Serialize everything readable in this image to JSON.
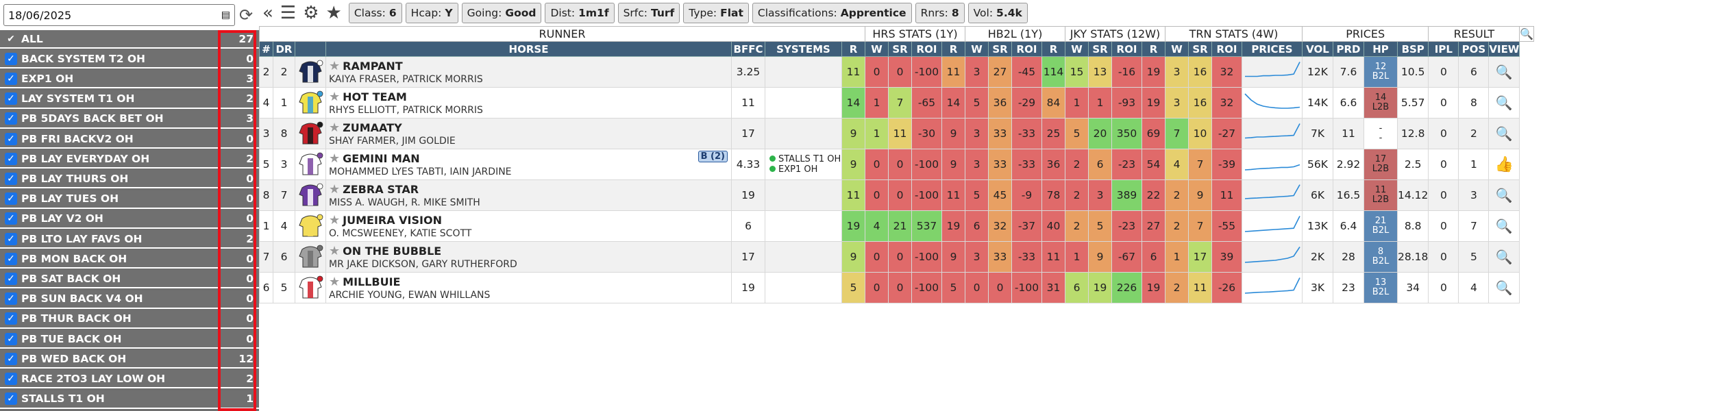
{
  "date": "18/06/2025",
  "sidebar": [
    {
      "label": "ALL",
      "count": "27",
      "all": true
    },
    {
      "label": "BACK SYSTEM T2 OH",
      "count": "0"
    },
    {
      "label": "EXP1 OH",
      "count": "3"
    },
    {
      "label": "LAY SYSTEM T1 OH",
      "count": "2"
    },
    {
      "label": "PB 5DAYS BACK BET OH",
      "count": "3"
    },
    {
      "label": "PB FRI BACKV2 OH",
      "count": "0"
    },
    {
      "label": "PB LAY EVERYDAY OH",
      "count": "2"
    },
    {
      "label": "PB LAY THURS OH",
      "count": "0"
    },
    {
      "label": "PB LAY TUES OH",
      "count": "0"
    },
    {
      "label": "PB LAY V2 OH",
      "count": "0"
    },
    {
      "label": "PB LTO LAY FAVS OH",
      "count": "2"
    },
    {
      "label": "PB MON BACK OH",
      "count": "0"
    },
    {
      "label": "PB SAT BACK OH",
      "count": "0"
    },
    {
      "label": "PB SUN BACK V4 OH",
      "count": "0"
    },
    {
      "label": "PB THUR BACK OH",
      "count": "0"
    },
    {
      "label": "PB TUE BACK OH",
      "count": "0"
    },
    {
      "label": "PB WED BACK OH",
      "count": "12"
    },
    {
      "label": "RACE 2TO3 LAY LOW OH",
      "count": "2"
    },
    {
      "label": "STALLS T1 OH",
      "count": "1"
    }
  ],
  "chips": [
    {
      "k": "Class:",
      "v": "6"
    },
    {
      "k": "Hcap:",
      "v": "Y"
    },
    {
      "k": "Going:",
      "v": "Good"
    },
    {
      "k": "Dist:",
      "v": "1m1f"
    },
    {
      "k": "Srfc:",
      "v": "Turf"
    },
    {
      "k": "Type:",
      "v": "Flat"
    },
    {
      "k": "Classifications:",
      "v": "Apprentice"
    },
    {
      "k": "Rnrs:",
      "v": "8"
    },
    {
      "k": "Vol:",
      "v": "5.4k"
    }
  ],
  "groups": [
    {
      "label": "RUNNER",
      "span": 7
    },
    {
      "label": "HRS STATS (1Y)",
      "span": 4
    },
    {
      "label": "HB2L (1Y)",
      "span": 4
    },
    {
      "label": "JKY STATS (12W)",
      "span": 4
    },
    {
      "label": "TRN STATS (4W)",
      "span": 4
    },
    {
      "label": "PRICES",
      "span": 4
    },
    {
      "label": "RESULT",
      "span": 3
    },
    {
      "label": "",
      "span": 1,
      "icon": true
    }
  ],
  "headers": [
    "#",
    "DR",
    "",
    "HORSE",
    "BFFC",
    "SYSTEMS",
    "R",
    "W",
    "SR",
    "ROI",
    "R",
    "W",
    "SR",
    "ROI",
    "R",
    "W",
    "SR",
    "ROI",
    "R",
    "W",
    "SR",
    "ROI",
    "PRICES",
    "VOL",
    "PRD",
    "HP",
    "BSP",
    "IPL",
    "POS",
    "VIEW"
  ],
  "colors": {
    "green": "#7fd36b",
    "lime": "#b9dc6e",
    "yellow": "#e6cf6e",
    "orange": "#e8a063",
    "red": "#e06a6a",
    "blue": "#5a87b5"
  },
  "rows": [
    {
      "n": "2",
      "dr": "2",
      "silk": [
        "#1b2a55",
        "#ffffff"
      ],
      "name": "RAMPANT",
      "sub": "KAIYA FRASER, PATRICK MORRIS",
      "bffc": "3.25",
      "sys": [],
      "tag": "",
      "stats": [
        [
          "11",
          "lime"
        ],
        [
          "0",
          "red"
        ],
        [
          "0",
          "red"
        ],
        [
          "-100",
          "red"
        ],
        [
          "11",
          "orange"
        ],
        [
          "3",
          "red"
        ],
        [
          "27",
          "orange"
        ],
        [
          "-45",
          "red"
        ],
        [
          "114",
          "green"
        ],
        [
          "15",
          "lime"
        ],
        [
          "13",
          "yellow"
        ],
        [
          "-16",
          "red"
        ],
        [
          "19",
          "red"
        ],
        [
          "3",
          "yellow"
        ],
        [
          "16",
          "yellow"
        ],
        [
          "32",
          "red"
        ]
      ],
      "spark": [
        0.25,
        0.25,
        0.25,
        0.28,
        0.28,
        0.3,
        0.3,
        0.32,
        0.36,
        0.95
      ],
      "vol": "12K",
      "prd": "7.6",
      "hp": "12\nB2L",
      "hpc": "blue",
      "bsp": "10.5",
      "ipl": "0",
      "pos": "6",
      "view": "search"
    },
    {
      "n": "4",
      "dr": "1",
      "silk": [
        "#f0e24a",
        "#3aa0d8"
      ],
      "name": "HOT TEAM",
      "sub": "RHYS ELLIOTT, PATRICK MORRIS",
      "bffc": "11",
      "sys": [],
      "tag": "",
      "stats": [
        [
          "14",
          "green"
        ],
        [
          "1",
          "red"
        ],
        [
          "7",
          "lime"
        ],
        [
          "-65",
          "red"
        ],
        [
          "14",
          "red"
        ],
        [
          "5",
          "red"
        ],
        [
          "36",
          "orange"
        ],
        [
          "-29",
          "red"
        ],
        [
          "84",
          "orange"
        ],
        [
          "1",
          "red"
        ],
        [
          "1",
          "red"
        ],
        [
          "-93",
          "red"
        ],
        [
          "19",
          "red"
        ],
        [
          "3",
          "yellow"
        ],
        [
          "16",
          "yellow"
        ],
        [
          "32",
          "red"
        ]
      ],
      "spark": [
        0.9,
        0.6,
        0.4,
        0.3,
        0.25,
        0.22,
        0.2,
        0.2,
        0.22,
        0.25
      ],
      "vol": "14K",
      "prd": "6.6",
      "hp": "14\nL2B",
      "hpc": "red",
      "bsp": "5.57",
      "ipl": "0",
      "pos": "8",
      "view": "search"
    },
    {
      "n": "3",
      "dr": "8",
      "silk": [
        "#c8202a",
        "#1b1b1b"
      ],
      "name": "ZUMAATY",
      "sub": "SHAY FARMER, JIM GOLDIE",
      "bffc": "17",
      "sys": [],
      "tag": "",
      "stats": [
        [
          "9",
          "lime"
        ],
        [
          "1",
          "lime"
        ],
        [
          "11",
          "yellow"
        ],
        [
          "-30",
          "red"
        ],
        [
          "9",
          "red"
        ],
        [
          "3",
          "red"
        ],
        [
          "33",
          "orange"
        ],
        [
          "-33",
          "red"
        ],
        [
          "25",
          "red"
        ],
        [
          "5",
          "orange"
        ],
        [
          "20",
          "green"
        ],
        [
          "350",
          "green"
        ],
        [
          "69",
          "red"
        ],
        [
          "7",
          "green"
        ],
        [
          "10",
          "yellow"
        ],
        [
          "-27",
          "red"
        ]
      ],
      "spark": [
        0.25,
        0.27,
        0.3,
        0.3,
        0.32,
        0.33,
        0.35,
        0.36,
        0.38,
        0.95
      ],
      "vol": "7K",
      "prd": "11",
      "hp": "-\n-",
      "hpc": "blank",
      "bsp": "12.8",
      "ipl": "0",
      "pos": "2",
      "view": "search"
    },
    {
      "n": "5",
      "dr": "3",
      "silk": [
        "#ffffff",
        "#7a45a0"
      ],
      "name": "GEMINI MAN",
      "sub": "MOHAMMED LYES TABTI, IAIN JARDINE",
      "bffc": "4.33",
      "sys": [
        "STALLS T1 OH",
        "EXP1 OH"
      ],
      "tag": "B (2)",
      "stats": [
        [
          "9",
          "lime"
        ],
        [
          "0",
          "red"
        ],
        [
          "0",
          "red"
        ],
        [
          "-100",
          "red"
        ],
        [
          "9",
          "red"
        ],
        [
          "3",
          "red"
        ],
        [
          "33",
          "orange"
        ],
        [
          "-33",
          "red"
        ],
        [
          "36",
          "red"
        ],
        [
          "2",
          "red"
        ],
        [
          "6",
          "orange"
        ],
        [
          "-23",
          "red"
        ],
        [
          "54",
          "red"
        ],
        [
          "4",
          "yellow"
        ],
        [
          "7",
          "orange"
        ],
        [
          "-39",
          "red"
        ]
      ],
      "spark": [
        0.2,
        0.22,
        0.25,
        0.27,
        0.28,
        0.3,
        0.32,
        0.32,
        0.35,
        0.45
      ],
      "vol": "56K",
      "prd": "2.92",
      "hp": "17\nL2B",
      "hpc": "red",
      "bsp": "2.5",
      "ipl": "0",
      "pos": "1",
      "view": "thumb"
    },
    {
      "n": "8",
      "dr": "7",
      "silk": [
        "#6a3aa0",
        "#ffffff"
      ],
      "name": "ZEBRA STAR",
      "sub": "MISS A. WAUGH, R. MIKE SMITH",
      "bffc": "19",
      "sys": [],
      "tag": "",
      "stats": [
        [
          "11",
          "lime"
        ],
        [
          "0",
          "red"
        ],
        [
          "0",
          "red"
        ],
        [
          "-100",
          "red"
        ],
        [
          "11",
          "red"
        ],
        [
          "5",
          "red"
        ],
        [
          "45",
          "orange"
        ],
        [
          "-9",
          "red"
        ],
        [
          "78",
          "red"
        ],
        [
          "2",
          "red"
        ],
        [
          "3",
          "red"
        ],
        [
          "389",
          "green"
        ],
        [
          "22",
          "red"
        ],
        [
          "2",
          "orange"
        ],
        [
          "9",
          "orange"
        ],
        [
          "11",
          "red"
        ]
      ],
      "spark": [
        0.3,
        0.32,
        0.33,
        0.35,
        0.36,
        0.38,
        0.4,
        0.42,
        0.45,
        0.98
      ],
      "vol": "6K",
      "prd": "16.5",
      "hp": "11\nL2B",
      "hpc": "red",
      "bsp": "14.12",
      "ipl": "0",
      "pos": "3",
      "view": "search"
    },
    {
      "n": "1",
      "dr": "4",
      "silk": [
        "#f3dd5a",
        "#f3dd5a"
      ],
      "name": "JUMEIRA VISION",
      "sub": "O. MCSWEENEY, KATIE SCOTT",
      "bffc": "6",
      "sys": [],
      "tag": "",
      "stats": [
        [
          "19",
          "green"
        ],
        [
          "4",
          "green"
        ],
        [
          "21",
          "green"
        ],
        [
          "537",
          "green"
        ],
        [
          "19",
          "red"
        ],
        [
          "6",
          "red"
        ],
        [
          "32",
          "orange"
        ],
        [
          "-37",
          "red"
        ],
        [
          "40",
          "red"
        ],
        [
          "2",
          "orange"
        ],
        [
          "5",
          "orange"
        ],
        [
          "-23",
          "red"
        ],
        [
          "27",
          "red"
        ],
        [
          "2",
          "orange"
        ],
        [
          "7",
          "orange"
        ],
        [
          "-55",
          "red"
        ]
      ],
      "spark": [
        0.2,
        0.22,
        0.24,
        0.26,
        0.28,
        0.3,
        0.32,
        0.34,
        0.36,
        0.95
      ],
      "vol": "13K",
      "prd": "6.4",
      "hp": "21\nB2L",
      "hpc": "blue",
      "bsp": "8.8",
      "ipl": "0",
      "pos": "7",
      "view": "search"
    },
    {
      "n": "7",
      "dr": "6",
      "silk": [
        "#a0a0a0",
        "#707070"
      ],
      "name": "ON THE BUBBLE",
      "sub": "MR JAKE DICKSON, GARY RUTHERFORD",
      "bffc": "17",
      "sys": [],
      "tag": "",
      "stats": [
        [
          "9",
          "lime"
        ],
        [
          "0",
          "red"
        ],
        [
          "0",
          "red"
        ],
        [
          "-100",
          "red"
        ],
        [
          "9",
          "red"
        ],
        [
          "3",
          "red"
        ],
        [
          "33",
          "orange"
        ],
        [
          "-33",
          "red"
        ],
        [
          "11",
          "red"
        ],
        [
          "1",
          "red"
        ],
        [
          "9",
          "orange"
        ],
        [
          "-67",
          "red"
        ],
        [
          "6",
          "red"
        ],
        [
          "1",
          "orange"
        ],
        [
          "17",
          "lime"
        ],
        [
          "39",
          "red"
        ]
      ],
      "spark": [
        0.2,
        0.22,
        0.24,
        0.26,
        0.28,
        0.3,
        0.35,
        0.4,
        0.5,
        0.95
      ],
      "vol": "2K",
      "prd": "28",
      "hp": "8\nB2L",
      "hpc": "blue",
      "bsp": "28.18",
      "ipl": "0",
      "pos": "5",
      "view": "search"
    },
    {
      "n": "6",
      "dr": "5",
      "silk": [
        "#ffffff",
        "#d0202a"
      ],
      "name": "MILLBUIE",
      "sub": "ARCHIE YOUNG, EWAN WHILLANS",
      "bffc": "19",
      "sys": [],
      "tag": "",
      "stats": [
        [
          "5",
          "yellow"
        ],
        [
          "0",
          "red"
        ],
        [
          "0",
          "red"
        ],
        [
          "-100",
          "red"
        ],
        [
          "5",
          "red"
        ],
        [
          "0",
          "red"
        ],
        [
          "0",
          "red"
        ],
        [
          "-100",
          "red"
        ],
        [
          "31",
          "red"
        ],
        [
          "6",
          "lime"
        ],
        [
          "19",
          "lime"
        ],
        [
          "226",
          "green"
        ],
        [
          "19",
          "red"
        ],
        [
          "2",
          "orange"
        ],
        [
          "11",
          "yellow"
        ],
        [
          "-26",
          "red"
        ]
      ],
      "spark": [
        0.2,
        0.22,
        0.24,
        0.25,
        0.26,
        0.28,
        0.3,
        0.32,
        0.35,
        0.95
      ],
      "vol": "3K",
      "prd": "23",
      "hp": "13\nB2L",
      "hpc": "blue",
      "bsp": "34",
      "ipl": "0",
      "pos": "4",
      "view": "search"
    }
  ]
}
